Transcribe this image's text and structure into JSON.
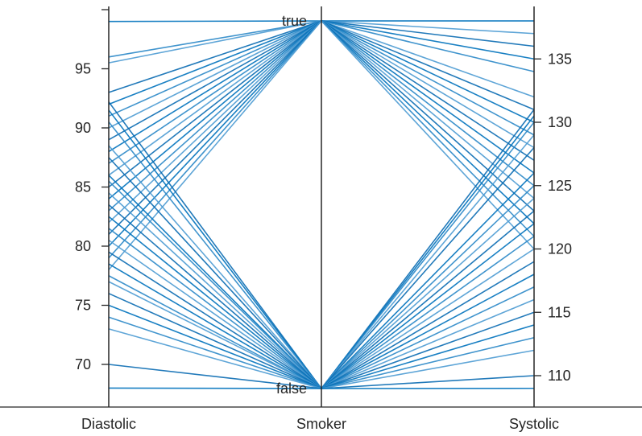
{
  "chart_data": {
    "type": "parallel-coordinates",
    "title": "",
    "coordinates": [
      "Diastolic",
      "Smoker",
      "Systolic"
    ],
    "axes": {
      "Diastolic": {
        "ylim": [
          66,
          101
        ],
        "ticks": [
          70,
          75,
          80,
          85,
          90,
          95
        ]
      },
      "Smoker": {
        "categories": [
          "false",
          "true"
        ]
      },
      "Systolic": {
        "ylim": [
          106.2,
          141.8
        ],
        "ticks": [
          110,
          115,
          120,
          125,
          130,
          135
        ]
      }
    },
    "line_color": "#0072BD",
    "observations": [
      {
        "Diastolic": 99,
        "Smoker": "true",
        "Systolic": 138
      },
      {
        "Diastolic": 96,
        "Smoker": "true",
        "Systolic": 138
      },
      {
        "Diastolic": 95.5,
        "Smoker": "true",
        "Systolic": 137
      },
      {
        "Diastolic": 93,
        "Smoker": "true",
        "Systolic": 136
      },
      {
        "Diastolic": 92,
        "Smoker": "true",
        "Systolic": 135
      },
      {
        "Diastolic": 91,
        "Smoker": "true",
        "Systolic": 134
      },
      {
        "Diastolic": 90,
        "Smoker": "true",
        "Systolic": 132
      },
      {
        "Diastolic": 89,
        "Smoker": "true",
        "Systolic": 131
      },
      {
        "Diastolic": 88,
        "Smoker": "true",
        "Systolic": 130
      },
      {
        "Diastolic": 87,
        "Smoker": "true",
        "Systolic": 129
      },
      {
        "Diastolic": 86,
        "Smoker": "true",
        "Systolic": 128
      },
      {
        "Diastolic": 85,
        "Smoker": "true",
        "Systolic": 127
      },
      {
        "Diastolic": 84,
        "Smoker": "true",
        "Systolic": 126
      },
      {
        "Diastolic": 83,
        "Smoker": "true",
        "Systolic": 125
      },
      {
        "Diastolic": 82,
        "Smoker": "true",
        "Systolic": 124
      },
      {
        "Diastolic": 81,
        "Smoker": "true",
        "Systolic": 123
      },
      {
        "Diastolic": 80,
        "Smoker": "true",
        "Systolic": 122
      },
      {
        "Diastolic": 79,
        "Smoker": "true",
        "Systolic": 121
      },
      {
        "Diastolic": 78,
        "Smoker": "true",
        "Systolic": 120
      },
      {
        "Diastolic": 92.2,
        "Smoker": "false",
        "Systolic": 131
      },
      {
        "Diastolic": 91.5,
        "Smoker": "false",
        "Systolic": 130.5
      },
      {
        "Diastolic": 90.5,
        "Smoker": "false",
        "Systolic": 130
      },
      {
        "Diastolic": 88.5,
        "Smoker": "false",
        "Systolic": 129
      },
      {
        "Diastolic": 87.5,
        "Smoker": "false",
        "Systolic": 128
      },
      {
        "Diastolic": 86,
        "Smoker": "false",
        "Systolic": 126
      },
      {
        "Diastolic": 85.5,
        "Smoker": "false",
        "Systolic": 125
      },
      {
        "Diastolic": 84.5,
        "Smoker": "false",
        "Systolic": 124
      },
      {
        "Diastolic": 83.5,
        "Smoker": "false",
        "Systolic": 123
      },
      {
        "Diastolic": 82.5,
        "Smoker": "false",
        "Systolic": 122
      },
      {
        "Diastolic": 81.5,
        "Smoker": "false",
        "Systolic": 121
      },
      {
        "Diastolic": 80.5,
        "Smoker": "false",
        "Systolic": 120
      },
      {
        "Diastolic": 79.5,
        "Smoker": "false",
        "Systolic": 119
      },
      {
        "Diastolic": 78.5,
        "Smoker": "false",
        "Systolic": 118
      },
      {
        "Diastolic": 77.5,
        "Smoker": "false",
        "Systolic": 117
      },
      {
        "Diastolic": 77,
        "Smoker": "false",
        "Systolic": 116
      },
      {
        "Diastolic": 76,
        "Smoker": "false",
        "Systolic": 115
      },
      {
        "Diastolic": 75,
        "Smoker": "false",
        "Systolic": 114
      },
      {
        "Diastolic": 74,
        "Smoker": "false",
        "Systolic": 113
      },
      {
        "Diastolic": 73,
        "Smoker": "false",
        "Systolic": 112
      },
      {
        "Diastolic": 70,
        "Smoker": "false",
        "Systolic": 110
      },
      {
        "Diastolic": 68,
        "Smoker": "false",
        "Systolic": 109
      }
    ]
  }
}
